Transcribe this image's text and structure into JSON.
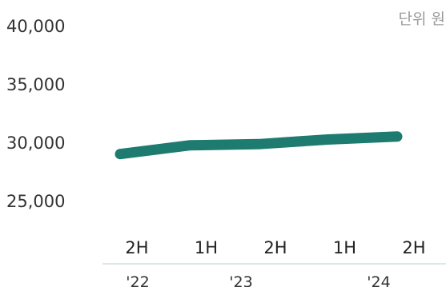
{
  "chart_data": {
    "type": "line",
    "unit_label": "단위 원",
    "categories": [
      "2H",
      "1H",
      "2H",
      "1H",
      "2H"
    ],
    "groups": [
      {
        "label": "'22",
        "span": [
          0,
          0
        ]
      },
      {
        "label": "'23",
        "span": [
          1,
          2
        ]
      },
      {
        "label": "'24",
        "span": [
          3,
          4
        ]
      }
    ],
    "y_ticks": [
      "40,000",
      "35,000",
      "30,000",
      "25,000"
    ],
    "y_tick_values": [
      40000,
      35000,
      30000,
      25000
    ],
    "ylim": [
      22000,
      40000
    ],
    "series": [
      {
        "values": [
          29000,
          29750,
          29850,
          30250,
          30500
        ],
        "color": "#1e7b70"
      }
    ],
    "axis_color": "#cfe3df",
    "grid": false
  }
}
